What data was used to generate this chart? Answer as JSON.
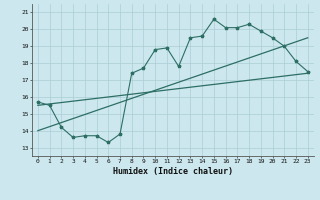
{
  "title": "",
  "xlabel": "Humidex (Indice chaleur)",
  "ylabel": "",
  "xlim": [
    -0.5,
    23.5
  ],
  "ylim": [
    12.5,
    21.5
  ],
  "xticks": [
    0,
    1,
    2,
    3,
    4,
    5,
    6,
    7,
    8,
    9,
    10,
    11,
    12,
    13,
    14,
    15,
    16,
    17,
    18,
    19,
    20,
    21,
    22,
    23
  ],
  "yticks": [
    13,
    14,
    15,
    16,
    17,
    18,
    19,
    20,
    21
  ],
  "bg_color": "#cce8ee",
  "line_color": "#2d6e65",
  "grid_color": "#aacdd4",
  "line1_x": [
    0,
    1,
    2,
    3,
    4,
    5,
    6,
    7,
    8,
    9,
    10,
    11,
    12,
    13,
    14,
    15,
    16,
    17,
    18,
    19,
    20,
    21,
    22,
    23
  ],
  "line1_y": [
    15.7,
    15.5,
    14.2,
    13.6,
    13.7,
    13.7,
    13.3,
    13.8,
    17.4,
    17.7,
    18.8,
    18.9,
    17.8,
    19.5,
    19.6,
    20.6,
    20.1,
    20.1,
    20.3,
    19.9,
    19.5,
    19.0,
    18.1,
    17.5
  ],
  "line2_x": [
    0,
    23
  ],
  "line2_y": [
    15.5,
    17.4
  ],
  "line3_x": [
    0,
    23
  ],
  "line3_y": [
    14.0,
    19.5
  ]
}
